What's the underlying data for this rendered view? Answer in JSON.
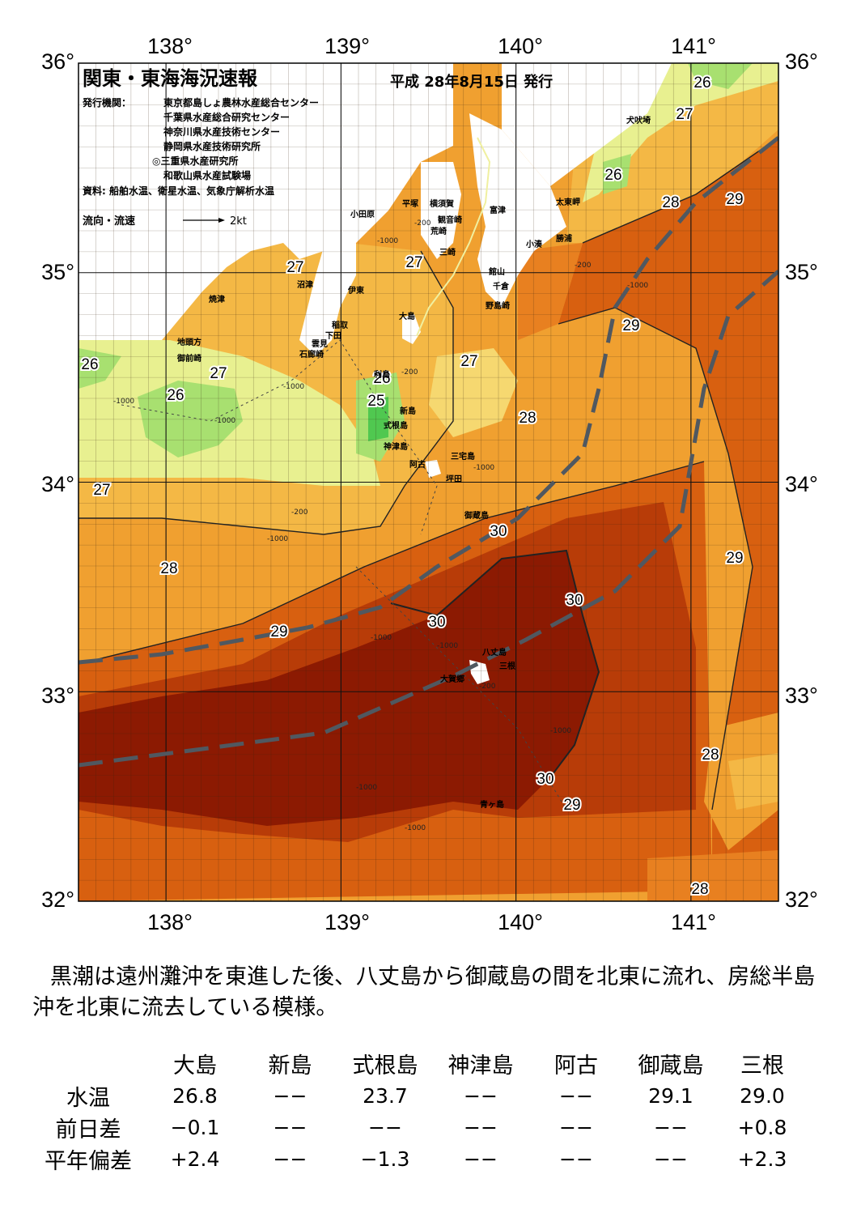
{
  "header": {
    "title": "関東・東海海況速報",
    "date": "平成 28年8月15日 発行",
    "issuers_label": "発行機関：",
    "issuers": [
      "東京都島しょ農林水産総合センター",
      "千葉県水産総合研究センター",
      "神奈川県水産技術センター",
      "静岡県水産技術研究所",
      "◎三重県水産研究所",
      "和歌山県水産試験場"
    ],
    "sources": "資料: 船舶水温、衛星水温、気象庁解析水温",
    "legend_label": "流向・流速",
    "legend_scale": "2kt"
  },
  "axes": {
    "lon_labels": [
      "138°",
      "139°",
      "140°",
      "141°"
    ],
    "lat_labels": [
      "36°",
      "35°",
      "34°",
      "33°",
      "32°"
    ]
  },
  "colors": {
    "t25": "#50c850",
    "t26": "#a8e070",
    "t26b": "#e8f090",
    "t27": "#f6d870",
    "t27b": "#f4b845",
    "t28": "#f0a030",
    "t28b": "#e88020",
    "t29": "#d86010",
    "t29b": "#b83c08",
    "t30": "#8c1a02",
    "land": "#ffffff",
    "kuroshio": "#505860"
  },
  "isotherms": [
    {
      "label": "26",
      "id": "l26a"
    },
    {
      "label": "27",
      "id": "l27a"
    },
    {
      "label": "26",
      "id": "l26b"
    },
    {
      "label": "28",
      "id": "l28a"
    },
    {
      "label": "29",
      "id": "l29a"
    },
    {
      "label": "27",
      "id": "l27b"
    },
    {
      "label": "27",
      "id": "l27c"
    },
    {
      "label": "29",
      "id": "l29b"
    },
    {
      "label": "26",
      "id": "l26c"
    },
    {
      "label": "27",
      "id": "l27d"
    },
    {
      "label": "26",
      "id": "l26d"
    },
    {
      "label": "27",
      "id": "l27e"
    },
    {
      "label": "26",
      "id": "l26e"
    },
    {
      "label": "25",
      "id": "l25a"
    },
    {
      "label": "28",
      "id": "l28b"
    },
    {
      "label": "27",
      "id": "l27f"
    },
    {
      "label": "30",
      "id": "l30a"
    },
    {
      "label": "29",
      "id": "l29c"
    },
    {
      "label": "28",
      "id": "l28c"
    },
    {
      "label": "30",
      "id": "l30b"
    },
    {
      "label": "30",
      "id": "l30c"
    },
    {
      "label": "29",
      "id": "l29d"
    },
    {
      "label": "28",
      "id": "l28d"
    },
    {
      "label": "30",
      "id": "l30d"
    },
    {
      "label": "29",
      "id": "l29e"
    },
    {
      "label": "28",
      "id": "l28e"
    }
  ],
  "depth_labels": [
    "-200",
    "-1000"
  ],
  "places": [
    "小田原",
    "平塚",
    "横須賀",
    "観音崎",
    "富津",
    "荒崎",
    "三崎",
    "館山",
    "千倉",
    "野島崎",
    "沼津",
    "伊東",
    "焼津",
    "稲取",
    "下田",
    "雲見",
    "石廊崎",
    "地頭方",
    "御前崎",
    "大島",
    "利島",
    "新島",
    "式根島",
    "神津島",
    "三宅島",
    "阿古",
    "坪田",
    "御蔵島",
    "八丈島",
    "三根",
    "大賀郷",
    "青ヶ島",
    "犬吠埼",
    "太東岬",
    "勝浦",
    "小湊"
  ],
  "summary": "黒潮は遠州灘沖を東進した後、八丈島から御蔵島の間を北東に流れ、房総半島沖を北東に流去している模様。",
  "table": {
    "columns": [
      "大島",
      "新島",
      "式根島",
      "神津島",
      "阿古",
      "御蔵島",
      "三根"
    ],
    "rows": [
      {
        "label": "水温",
        "values": [
          "26.8",
          "−−",
          "23.7",
          "−−",
          "−−",
          "29.1",
          "29.0"
        ]
      },
      {
        "label": "前日差",
        "values": [
          "−0.1",
          "−−",
          "−−",
          "−−",
          "−−",
          "−−",
          "+0.8"
        ]
      },
      {
        "label": "平年偏差",
        "values": [
          "+2.4",
          "−−",
          "−1.3",
          "−−",
          "−−",
          "−−",
          "+2.3"
        ]
      }
    ]
  }
}
